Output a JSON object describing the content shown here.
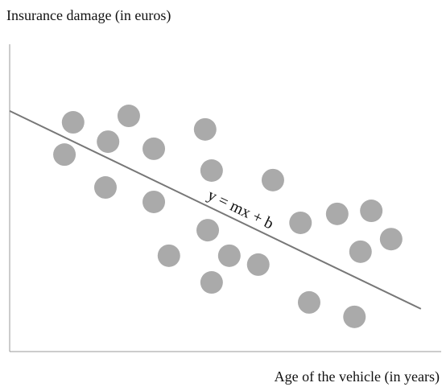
{
  "chart_data": {
    "type": "scatter",
    "ylabel": "Insurance damage (in euros)",
    "xlabel": "Age of the vehicle (in years)",
    "annotation": "y = mx + b",
    "xlim": [
      0,
      100
    ],
    "ylim": [
      0,
      100
    ],
    "color": "#aaaaaa",
    "x": [
      14.7,
      27.6,
      22.8,
      12.7,
      33.4,
      45.3,
      46.8,
      22.2,
      33.4,
      61.0,
      45.9,
      67.4,
      75.9,
      83.8,
      88.4,
      81.3,
      36.9,
      50.9,
      57.6,
      46.8,
      69.4,
      79.9
    ],
    "y": [
      74.6,
      76.7,
      68.3,
      64.1,
      66.0,
      72.3,
      58.9,
      53.4,
      48.7,
      55.8,
      39.5,
      41.9,
      44.8,
      45.8,
      36.6,
      32.5,
      31.2,
      31.2,
      28.3,
      22.5,
      16.0,
      11.3
    ],
    "fit": {
      "x": [
        0,
        95.3
      ],
      "y": [
        78.3,
        13.9
      ],
      "color": "#777777"
    }
  }
}
